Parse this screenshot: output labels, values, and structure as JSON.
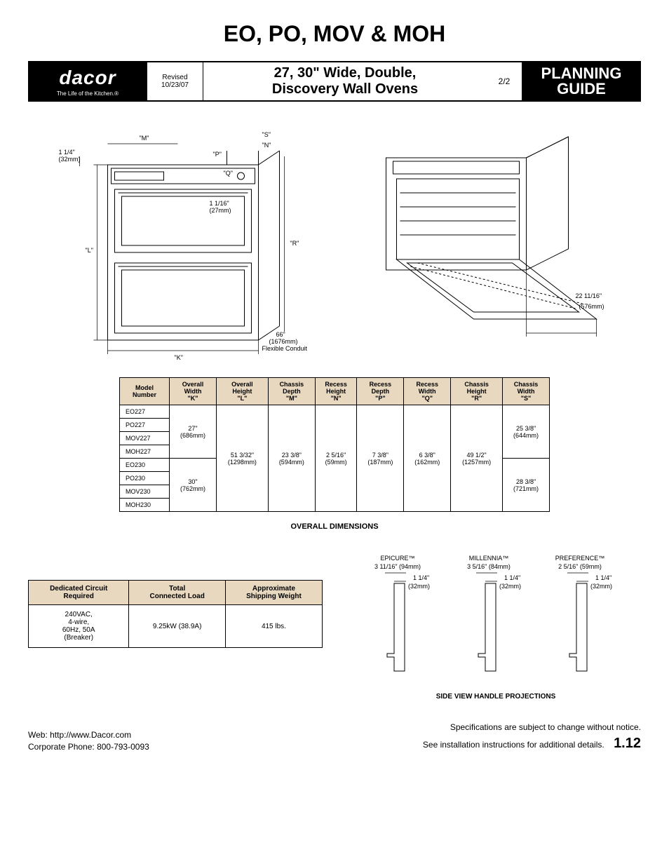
{
  "main_title": "EO, PO, MOV & MOH",
  "header": {
    "logo": "dacor",
    "logo_sub": "The Life of the Kitchen.®",
    "revised_label": "Revised",
    "revised_date": "10/23/07",
    "title_line1": "27, 30\" Wide, Double,",
    "title_line2": "Discovery Wall Ovens",
    "page": "2/2",
    "guide_line1": "PLANNING",
    "guide_line2": "GUIDE"
  },
  "diagram_left": {
    "labels": {
      "top_dim": "1 1/4\"",
      "top_dim_mm": "(32mm)",
      "M": "\"M\"",
      "S": "\"S\"",
      "N": "\"N\"",
      "P": "\"P\"",
      "Q": "\"Q\"",
      "L": "\"L\"",
      "R": "\"R\"",
      "K": "\"K\"",
      "inner_dim": "1 1/16\"",
      "inner_dim_mm": "(27mm)",
      "conduit1": "66\"",
      "conduit2": "(1676mm)",
      "conduit3": "Flexible Conduit"
    }
  },
  "diagram_right": {
    "dim": "22 11/16\"",
    "dim_mm": "(576mm)"
  },
  "dim_table": {
    "title": "OVERALL DIMENSIONS",
    "headers": [
      "Model\nNumber",
      "Overall\nWidth\n\"K\"",
      "Overall\nHeight\n\"L\"",
      "Chassis\nDepth\n\"M\"",
      "Recess\nHeight\n\"N\"",
      "Recess\nDepth\n\"P\"",
      "Recess\nWidth\n\"Q\"",
      "Chassis\nHeight\n\"R\"",
      "Chassis\nWidth\n\"S\""
    ],
    "group27": {
      "models": [
        "EO227",
        "PO227",
        "MOV227",
        "MOH227"
      ],
      "K": "27\"\n(686mm)",
      "S": "25 3/8\"\n(644mm)"
    },
    "group30": {
      "models": [
        "EO230",
        "PO230",
        "MOV230",
        "MOH230"
      ],
      "K": "30\"\n(762mm)",
      "S": "28 3/8\"\n(721mm)"
    },
    "shared": {
      "L": "51 3/32\"\n(1298mm)",
      "M": "23 3/8\"\n(594mm)",
      "N": "2 5/16\"\n(59mm)",
      "P": "7 3/8\"\n(187mm)",
      "Q": "6 3/8\"\n(162mm)",
      "R": "49 1/2\"\n(1257mm)"
    }
  },
  "elec_table": {
    "headers": [
      "Dedicated Circuit\nRequired",
      "Total\nConnected Load",
      "Approximate\nShipping Weight"
    ],
    "row": [
      "240VAC,\n4-wire,\n60Hz, 50A\n(Breaker)",
      "9.25kW (38.9A)",
      "415 lbs."
    ]
  },
  "handle_proj": {
    "title": "SIDE VIEW HANDLE PROJECTIONS",
    "epicure": {
      "name": "EPICURE™",
      "proj": "3 11/16\" (94mm)",
      "gap": "1 1/4\"",
      "gap_mm": "(32mm)"
    },
    "millennia": {
      "name": "MILLENNIA™",
      "proj": "3 5/16\" (84mm)",
      "gap": "1 1/4\"",
      "gap_mm": "(32mm)"
    },
    "preference": {
      "name": "PREFERENCE™",
      "proj": "2 5/16\" (59mm)",
      "gap": "1 1/4\"",
      "gap_mm": "(32mm)"
    }
  },
  "footer": {
    "web": "Web: http://www.Dacor.com",
    "phone": "Corporate Phone: 800-793-0093",
    "note1": "Specifications are subject to change without notice.",
    "note2": "See installation instructions for additional details.",
    "page_code": "1.12"
  }
}
